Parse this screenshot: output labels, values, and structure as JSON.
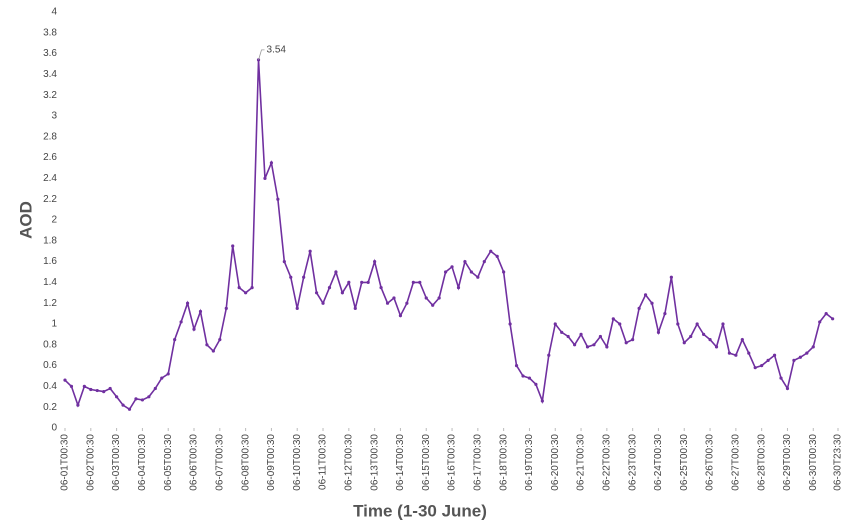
{
  "chart_data": {
    "type": "line",
    "xlabel": "Time (1-30 June)",
    "ylabel": "AOD",
    "color": "#7030a0",
    "grid": false,
    "x": [
      0,
      6,
      12,
      18,
      24,
      30,
      36,
      42,
      48,
      54,
      60,
      66,
      72,
      78,
      84,
      90,
      96,
      102,
      108,
      114,
      120,
      126,
      132,
      138,
      144,
      150,
      156,
      162,
      168,
      174,
      180,
      186,
      192,
      198,
      204,
      210,
      216,
      222,
      228,
      234,
      240,
      246,
      252,
      258,
      264,
      270,
      276,
      282,
      288,
      294,
      300,
      306,
      312,
      318,
      324,
      330,
      336,
      342,
      348,
      354,
      360,
      366,
      372,
      378,
      384,
      390,
      396,
      402,
      408,
      414,
      420,
      426,
      432,
      438,
      444,
      450,
      456,
      462,
      468,
      474,
      480,
      486,
      492,
      498,
      504,
      510,
      516,
      522,
      528,
      534,
      540,
      546,
      552,
      558,
      564,
      570,
      576,
      582,
      588,
      594,
      600,
      606,
      612,
      618,
      624,
      630,
      636,
      642,
      648,
      654,
      660,
      666,
      672,
      678,
      684,
      690,
      696,
      702,
      708,
      714
    ],
    "values": [
      0.46,
      0.4,
      0.22,
      0.4,
      0.37,
      0.36,
      0.35,
      0.38,
      0.3,
      0.22,
      0.18,
      0.28,
      0.27,
      0.3,
      0.38,
      0.48,
      0.52,
      0.85,
      1.02,
      1.2,
      0.95,
      1.12,
      0.8,
      0.74,
      0.85,
      1.15,
      1.75,
      1.35,
      1.3,
      1.35,
      3.54,
      2.4,
      2.55,
      2.2,
      1.6,
      1.45,
      1.15,
      1.45,
      1.7,
      1.3,
      1.2,
      1.35,
      1.5,
      1.3,
      1.4,
      1.15,
      1.4,
      1.4,
      1.6,
      1.35,
      1.2,
      1.25,
      1.08,
      1.2,
      1.4,
      1.4,
      1.25,
      1.18,
      1.25,
      1.5,
      1.55,
      1.35,
      1.6,
      1.5,
      1.45,
      1.6,
      1.7,
      1.65,
      1.5,
      1.0,
      0.6,
      0.5,
      0.48,
      0.42,
      0.26,
      0.7,
      1.0,
      0.92,
      0.88,
      0.8,
      0.9,
      0.78,
      0.8,
      0.88,
      0.78,
      1.05,
      1.0,
      0.82,
      0.85,
      1.15,
      1.28,
      1.2,
      0.92,
      1.1,
      1.45,
      1.0,
      0.82,
      0.88,
      1.0,
      0.9,
      0.85,
      0.78,
      1.0,
      0.72,
      0.7,
      0.85,
      0.72,
      0.58,
      0.6,
      0.65,
      0.7,
      0.48,
      0.38,
      0.65,
      0.68,
      0.72,
      0.78,
      1.02,
      1.1,
      1.05
    ],
    "xlim": [
      0,
      719
    ],
    "xticks": [
      {
        "value": 0,
        "label": "06-01T00:30"
      },
      {
        "value": 24,
        "label": "06-02T00:30"
      },
      {
        "value": 48,
        "label": "06-03T00:30"
      },
      {
        "value": 72,
        "label": "06-04T00:30"
      },
      {
        "value": 96,
        "label": "06-05T00:30"
      },
      {
        "value": 120,
        "label": "06-06T00:30"
      },
      {
        "value": 144,
        "label": "06-07T00:30"
      },
      {
        "value": 168,
        "label": "06-08T00:30"
      },
      {
        "value": 192,
        "label": "06-09T00:30"
      },
      {
        "value": 216,
        "label": "06-10T00:30"
      },
      {
        "value": 240,
        "label": "06-11T00:30"
      },
      {
        "value": 264,
        "label": "06-12T00:30"
      },
      {
        "value": 288,
        "label": "06-13T00:30"
      },
      {
        "value": 312,
        "label": "06-14T00:30"
      },
      {
        "value": 336,
        "label": "06-15T00:30"
      },
      {
        "value": 360,
        "label": "06-16T00:30"
      },
      {
        "value": 384,
        "label": "06-17T00:30"
      },
      {
        "value": 408,
        "label": "06-18T00:30"
      },
      {
        "value": 432,
        "label": "06-19T00:30"
      },
      {
        "value": 456,
        "label": "06-20T00:30"
      },
      {
        "value": 480,
        "label": "06-21T00:30"
      },
      {
        "value": 504,
        "label": "06-22T00:30"
      },
      {
        "value": 528,
        "label": "06-23T00:30"
      },
      {
        "value": 552,
        "label": "06-24T00:30"
      },
      {
        "value": 576,
        "label": "06-25T00:30"
      },
      {
        "value": 600,
        "label": "06-26T00:30"
      },
      {
        "value": 624,
        "label": "06-27T00:30"
      },
      {
        "value": 648,
        "label": "06-28T00:30"
      },
      {
        "value": 672,
        "label": "06-29T00:30"
      },
      {
        "value": 696,
        "label": "06-30T00:30"
      },
      {
        "value": 719,
        "label": "06-30T23:30"
      }
    ],
    "ylim": [
      0,
      4
    ],
    "yticks": [
      0,
      0.2,
      0.4,
      0.6,
      0.8,
      1,
      1.2,
      1.4,
      1.6,
      1.8,
      2,
      2.2,
      2.4,
      2.6,
      2.8,
      3,
      3.2,
      3.4,
      3.6,
      3.8,
      4
    ]
  }
}
